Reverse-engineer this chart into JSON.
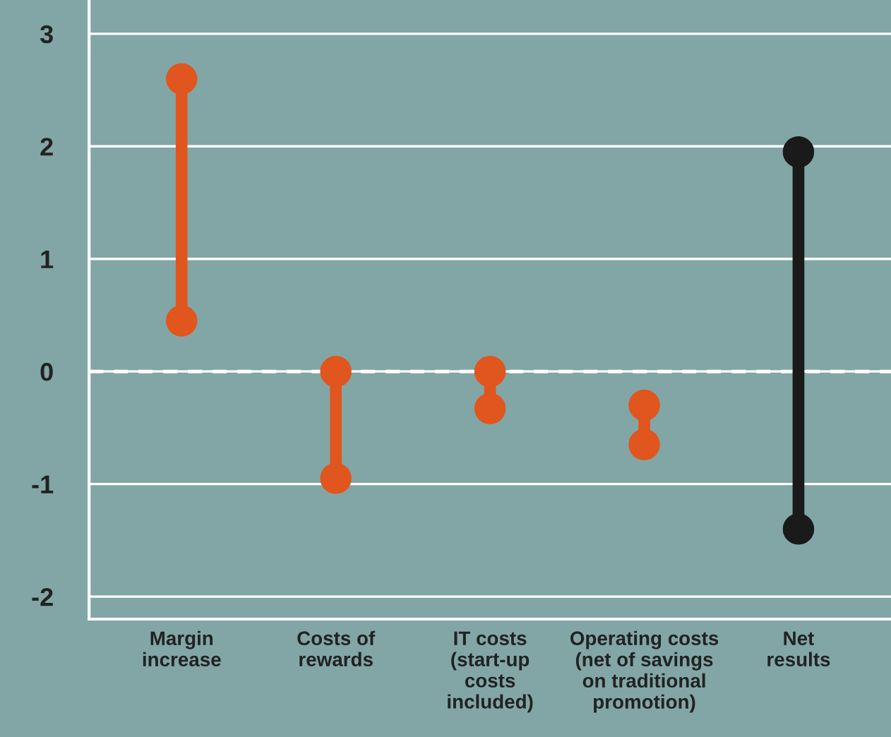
{
  "chart_data": {
    "type": "line",
    "categories": [
      "Margin\nincrease",
      "Costs of\nrewards",
      "IT costs\n(start-up\ncosts\nincluded)",
      "Operating costs\n(net of savings\non traditional\npromotion)",
      "Net\nresults"
    ],
    "series": [
      {
        "x": [
          "Margin\nincrease",
          "Margin\nincrease"
        ],
        "values": [
          2.6,
          0.45
        ],
        "color": "#e0561e"
      },
      {
        "x": [
          "Costs of\nrewards",
          "Costs of\nrewards"
        ],
        "values": [
          0,
          -0.95
        ],
        "color": "#e0561e"
      },
      {
        "x": [
          "IT costs\n(start-up\ncosts\nincluded)",
          "IT costs\n(start-up\ncosts\nincluded)"
        ],
        "values": [
          0,
          -0.33
        ],
        "color": "#e0561e"
      },
      {
        "x": [
          "Operating costs\n(net of savings\non traditional\npromotion)",
          "Operating costs\n(net of savings\non traditional\npromotion)"
        ],
        "values": [
          -0.3,
          -0.65
        ],
        "color": "#e0561e"
      },
      {
        "x": [
          "Net\nresults",
          "Net\nresults"
        ],
        "values": [
          1.95,
          -1.4
        ],
        "color": "#1a1a1a"
      }
    ],
    "marker": "circle",
    "ylim": [
      -2.2,
      3.3
    ],
    "yticks": [
      -2,
      -1,
      0,
      1,
      2,
      3
    ],
    "grid": "y",
    "ref_lines": [
      {
        "axis": "y",
        "value": 0,
        "color": "#ffffff",
        "line_style": "dashed"
      }
    ]
  }
}
